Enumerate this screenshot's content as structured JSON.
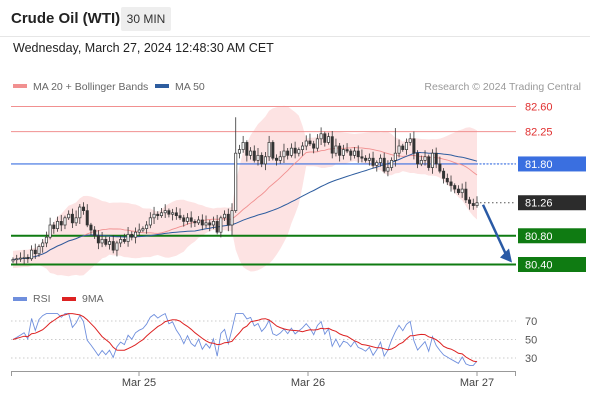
{
  "header": {
    "instrument": "Crude Oil (WTI)",
    "timeframe": "30 MIN",
    "datetime": "Wednesday, March 27, 2024 12:48:30 AM CET"
  },
  "legend": {
    "ma20": "MA 20 + Bollinger Bands",
    "ma50": "MA 50",
    "credit": "Research © 2024 Trading Central",
    "rsi": "RSI",
    "ma9": "9MA"
  },
  "colors": {
    "resistance": "#f19090",
    "blue_level": "#3a6fe0",
    "support": "#0f7b12",
    "band_fill": "#fde3e3",
    "candle": "#333333",
    "current_tag": "#2c2c2c",
    "arrow": "#2a5aa5",
    "ma50": "#2e5d9f",
    "rsi": "#6f8fdd",
    "rsi_ma": "#dd2222"
  },
  "chart_data": [
    {
      "type": "candlestick",
      "name": "price",
      "x_tick_labels": [
        "Mar 25",
        "Mar 26",
        "Mar 27"
      ],
      "ylim": [
        80.33,
        82.67
      ],
      "levels": [
        {
          "label": "82.60",
          "value": 82.6,
          "kind": "resistance"
        },
        {
          "label": "82.25",
          "value": 82.25,
          "kind": "resistance"
        },
        {
          "label": "81.80",
          "value": 81.8,
          "kind": "pivot"
        },
        {
          "label": "81.26",
          "value": 81.26,
          "kind": "current"
        },
        {
          "label": "80.80",
          "value": 80.8,
          "kind": "support"
        },
        {
          "label": "80.40",
          "value": 80.4,
          "kind": "support"
        }
      ],
      "projection": {
        "from": 81.26,
        "to": 80.4
      },
      "closes": [
        80.47,
        80.48,
        80.49,
        80.5,
        80.48,
        80.6,
        80.55,
        80.65,
        80.7,
        80.78,
        80.95,
        80.9,
        81.0,
        80.95,
        81.05,
        81.1,
        80.98,
        81.05,
        81.2,
        81.15,
        80.95,
        80.88,
        80.8,
        80.7,
        80.75,
        80.68,
        80.72,
        80.6,
        80.7,
        80.75,
        80.72,
        80.82,
        80.78,
        80.85,
        80.88,
        80.9,
        80.95,
        81.05,
        81.1,
        81.08,
        81.12,
        81.15,
        81.1,
        81.12,
        81.08,
        81.05,
        81.0,
        81.05,
        81.0,
        80.98,
        81.02,
        80.95,
        80.98,
        80.95,
        81.0,
        80.85,
        81.05,
        81.1,
        80.95,
        81.15,
        81.95,
        82.0,
        82.1,
        81.92,
        81.98,
        81.85,
        81.92,
        81.8,
        81.9,
        82.1,
        81.88,
        81.85,
        81.9,
        81.98,
        81.92,
        82.02,
        81.95,
        82.0,
        82.05,
        82.12,
        82.08,
        82.02,
        82.15,
        82.22,
        82.1,
        82.18,
        81.95,
        82.05,
        81.92,
        82.0,
        81.98,
        81.92,
        81.98,
        81.9,
        81.88,
        81.85,
        81.88,
        81.78,
        81.82,
        81.88,
        81.7,
        81.75,
        81.85,
        81.95,
        82.05,
        82.0,
        82.1,
        82.15,
        81.95,
        81.8,
        81.85,
        81.9,
        81.75,
        81.95,
        81.8,
        81.7,
        81.6,
        81.55,
        81.5,
        81.45,
        81.4,
        81.45,
        81.3,
        81.25,
        81.22,
        81.26
      ]
    },
    {
      "type": "line",
      "name": "RSI",
      "ylim": [
        20,
        80
      ],
      "y_tick_labels": [
        "70",
        "50",
        "30"
      ],
      "reference_lines": [
        70,
        50,
        30
      ],
      "series": [
        {
          "name": "RSI"
        },
        {
          "name": "9MA"
        }
      ]
    }
  ]
}
